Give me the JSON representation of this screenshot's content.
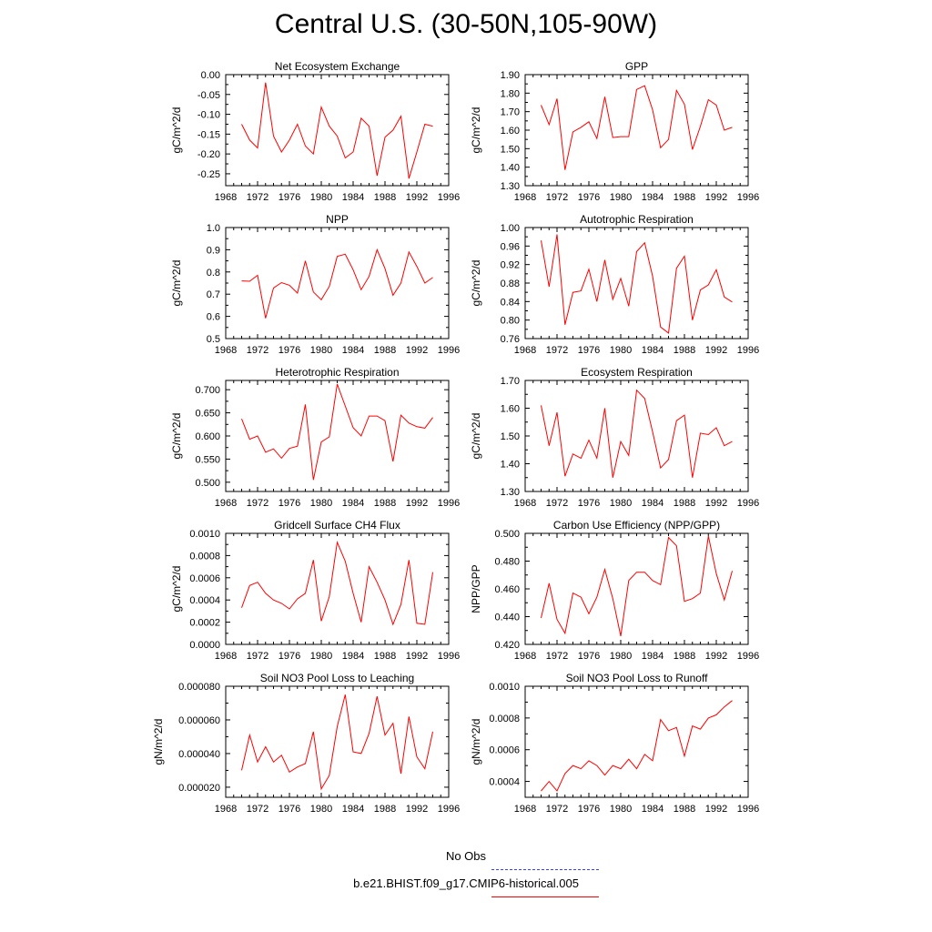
{
  "page": {
    "title": "Central U.S. (30-50N,105-90W)"
  },
  "legend": {
    "items": [
      {
        "label": "No Obs",
        "color": "#3a3aff",
        "style": "dashed"
      },
      {
        "label": "b.e21.BHIST.f09_g17.CMIP6-historical.005",
        "color": "#ff0000",
        "style": "solid"
      }
    ]
  },
  "chart_data": [
    {
      "type": "line",
      "title": "Net Ecosystem Exchange",
      "ylabel": "gC/m^2/d",
      "xlim": [
        1968,
        1996
      ],
      "xticks": [
        1968,
        1972,
        1976,
        1980,
        1984,
        1988,
        1992,
        1996
      ],
      "xtick_labels": [
        "1968",
        "1972",
        "1976",
        "1980",
        "1984",
        "1988",
        "1992",
        "1996"
      ],
      "ylim": [
        -0.28,
        0.0
      ],
      "yticks": [
        0.0,
        -0.05,
        -0.1,
        -0.15,
        -0.2,
        -0.25
      ],
      "ytick_labels": [
        "0.00",
        "-0.05",
        "-0.10",
        "-0.15",
        "-0.20",
        "-0.25"
      ],
      "color": "#ff0000",
      "x": [
        1970,
        1971,
        1972,
        1973,
        1974,
        1975,
        1976,
        1977,
        1978,
        1979,
        1980,
        1981,
        1982,
        1983,
        1984,
        1985,
        1986,
        1987,
        1988,
        1989,
        1990,
        1991,
        1992,
        1993,
        1994
      ],
      "y": [
        -0.125,
        -0.165,
        -0.185,
        -0.02,
        -0.155,
        -0.195,
        -0.165,
        -0.125,
        -0.18,
        -0.2,
        -0.082,
        -0.13,
        -0.155,
        -0.21,
        -0.195,
        -0.11,
        -0.13,
        -0.255,
        -0.158,
        -0.14,
        -0.105,
        -0.262,
        -0.195,
        -0.125,
        -0.13
      ]
    },
    {
      "type": "line",
      "title": "GPP",
      "ylabel": "gC/m^2/d",
      "xlim": [
        1968,
        1996
      ],
      "xticks": [
        1968,
        1972,
        1976,
        1980,
        1984,
        1988,
        1992,
        1996
      ],
      "xtick_labels": [
        "1968",
        "1972",
        "1976",
        "1980",
        "1984",
        "1988",
        "1992",
        "1996"
      ],
      "ylim": [
        1.3,
        1.9
      ],
      "yticks": [
        1.3,
        1.4,
        1.5,
        1.6,
        1.7,
        1.8,
        1.9
      ],
      "ytick_labels": [
        "1.30",
        "1.40",
        "1.50",
        "1.60",
        "1.70",
        "1.80",
        "1.90"
      ],
      "color": "#ff0000",
      "x": [
        1970,
        1971,
        1972,
        1973,
        1974,
        1975,
        1976,
        1977,
        1978,
        1979,
        1980,
        1981,
        1982,
        1983,
        1984,
        1985,
        1986,
        1987,
        1988,
        1989,
        1990,
        1991,
        1992,
        1993,
        1994
      ],
      "y": [
        1.735,
        1.63,
        1.77,
        1.385,
        1.59,
        1.615,
        1.645,
        1.555,
        1.78,
        1.56,
        1.565,
        1.565,
        1.82,
        1.84,
        1.71,
        1.505,
        1.55,
        1.815,
        1.74,
        1.495,
        1.62,
        1.765,
        1.735,
        1.6,
        1.615
      ]
    },
    {
      "type": "line",
      "title": "NPP",
      "ylabel": "gC/m^2/d",
      "xlim": [
        1968,
        1996
      ],
      "xticks": [
        1968,
        1972,
        1976,
        1980,
        1984,
        1988,
        1992,
        1996
      ],
      "xtick_labels": [
        "1968",
        "1972",
        "1976",
        "1980",
        "1984",
        "1988",
        "1992",
        "1996"
      ],
      "ylim": [
        0.5,
        1.0
      ],
      "yticks": [
        0.5,
        0.6,
        0.7,
        0.8,
        0.9,
        1.0
      ],
      "ytick_labels": [
        "0.5",
        "0.6",
        "0.7",
        "0.8",
        "0.9",
        "1.0"
      ],
      "color": "#ff0000",
      "x": [
        1970,
        1971,
        1972,
        1973,
        1974,
        1975,
        1976,
        1977,
        1978,
        1979,
        1980,
        1981,
        1982,
        1983,
        1984,
        1985,
        1986,
        1987,
        1988,
        1989,
        1990,
        1991,
        1992,
        1993,
        1994
      ],
      "y": [
        0.76,
        0.758,
        0.785,
        0.592,
        0.728,
        0.752,
        0.74,
        0.705,
        0.85,
        0.71,
        0.675,
        0.735,
        0.87,
        0.88,
        0.81,
        0.72,
        0.78,
        0.9,
        0.815,
        0.695,
        0.75,
        0.89,
        0.825,
        0.75,
        0.775
      ]
    },
    {
      "type": "line",
      "title": "Autotrophic Respiration",
      "ylabel": "gC/m^2/d",
      "xlim": [
        1968,
        1996
      ],
      "xticks": [
        1968,
        1972,
        1976,
        1980,
        1984,
        1988,
        1992,
        1996
      ],
      "xtick_labels": [
        "1968",
        "1972",
        "1976",
        "1980",
        "1984",
        "1988",
        "1992",
        "1996"
      ],
      "ylim": [
        0.76,
        1.0
      ],
      "yticks": [
        0.76,
        0.8,
        0.84,
        0.88,
        0.92,
        0.96,
        1.0
      ],
      "ytick_labels": [
        "0.76",
        "0.80",
        "0.84",
        "0.88",
        "0.92",
        "0.96",
        "1.00"
      ],
      "color": "#ff0000",
      "x": [
        1970,
        1971,
        1972,
        1973,
        1974,
        1975,
        1976,
        1977,
        1978,
        1979,
        1980,
        1981,
        1982,
        1983,
        1984,
        1985,
        1986,
        1987,
        1988,
        1989,
        1990,
        1991,
        1992,
        1993,
        1994
      ],
      "y": [
        0.972,
        0.872,
        0.985,
        0.79,
        0.86,
        0.863,
        0.91,
        0.84,
        0.93,
        0.845,
        0.89,
        0.83,
        0.948,
        0.967,
        0.895,
        0.785,
        0.772,
        0.912,
        0.938,
        0.8,
        0.865,
        0.876,
        0.909,
        0.85,
        0.839
      ]
    },
    {
      "type": "line",
      "title": "Heterotrophic Respiration",
      "ylabel": "gC/m^2/d",
      "xlim": [
        1968,
        1996
      ],
      "xticks": [
        1968,
        1972,
        1976,
        1980,
        1984,
        1988,
        1992,
        1996
      ],
      "xtick_labels": [
        "1968",
        "1972",
        "1976",
        "1980",
        "1984",
        "1988",
        "1992",
        "1996"
      ],
      "ylim": [
        0.48,
        0.72
      ],
      "yticks": [
        0.5,
        0.55,
        0.6,
        0.65,
        0.7
      ],
      "ytick_labels": [
        "0.500",
        "0.550",
        "0.600",
        "0.650",
        "0.700"
      ],
      "color": "#ff0000",
      "x": [
        1970,
        1971,
        1972,
        1973,
        1974,
        1975,
        1976,
        1977,
        1978,
        1979,
        1980,
        1981,
        1982,
        1983,
        1984,
        1985,
        1986,
        1987,
        1988,
        1989,
        1990,
        1991,
        1992,
        1993,
        1994
      ],
      "y": [
        0.637,
        0.593,
        0.6,
        0.565,
        0.572,
        0.552,
        0.573,
        0.578,
        0.668,
        0.505,
        0.587,
        0.598,
        0.712,
        0.665,
        0.618,
        0.6,
        0.643,
        0.643,
        0.633,
        0.545,
        0.645,
        0.628,
        0.62,
        0.617,
        0.64
      ]
    },
    {
      "type": "line",
      "title": "Ecosystem Respiration",
      "ylabel": "gC/m^2/d",
      "xlim": [
        1968,
        1996
      ],
      "xticks": [
        1968,
        1972,
        1976,
        1980,
        1984,
        1988,
        1992,
        1996
      ],
      "xtick_labels": [
        "1968",
        "1972",
        "1976",
        "1980",
        "1984",
        "1988",
        "1992",
        "1996"
      ],
      "ylim": [
        1.3,
        1.7
      ],
      "yticks": [
        1.3,
        1.4,
        1.5,
        1.6,
        1.7
      ],
      "ytick_labels": [
        "1.30",
        "1.40",
        "1.50",
        "1.60",
        "1.70"
      ],
      "color": "#ff0000",
      "x": [
        1970,
        1971,
        1972,
        1973,
        1974,
        1975,
        1976,
        1977,
        1978,
        1979,
        1980,
        1981,
        1982,
        1983,
        1984,
        1985,
        1986,
        1987,
        1988,
        1989,
        1990,
        1991,
        1992,
        1993,
        1994
      ],
      "y": [
        1.61,
        1.465,
        1.585,
        1.355,
        1.435,
        1.42,
        1.485,
        1.42,
        1.6,
        1.35,
        1.48,
        1.43,
        1.665,
        1.635,
        1.515,
        1.385,
        1.415,
        1.555,
        1.575,
        1.35,
        1.51,
        1.505,
        1.53,
        1.465,
        1.48
      ]
    },
    {
      "type": "line",
      "title": "Gridcell Surface CH4 Flux",
      "ylabel": "gC/m^2/d",
      "xlim": [
        1968,
        1996
      ],
      "xticks": [
        1968,
        1972,
        1976,
        1980,
        1984,
        1988,
        1992,
        1996
      ],
      "xtick_labels": [
        "1968",
        "1972",
        "1976",
        "1980",
        "1984",
        "1988",
        "1992",
        "1996"
      ],
      "ylim": [
        0.0,
        0.001
      ],
      "yticks": [
        0.0,
        0.0002,
        0.0004,
        0.0006,
        0.0008,
        0.001
      ],
      "ytick_labels": [
        "0.0000",
        "0.0002",
        "0.0004",
        "0.0006",
        "0.0008",
        "0.0010"
      ],
      "color": "#ff0000",
      "x": [
        1970,
        1971,
        1972,
        1973,
        1974,
        1975,
        1976,
        1977,
        1978,
        1979,
        1980,
        1981,
        1982,
        1983,
        1984,
        1985,
        1986,
        1987,
        1988,
        1989,
        1990,
        1991,
        1992,
        1993,
        1994
      ],
      "y": [
        0.00033,
        0.00053,
        0.00056,
        0.00046,
        0.0004,
        0.00037,
        0.00032,
        0.00041,
        0.00046,
        0.00076,
        0.00021,
        0.00043,
        0.00092,
        0.00075,
        0.00046,
        0.0002,
        0.0007,
        0.00056,
        0.0004,
        0.00018,
        0.00036,
        0.00076,
        0.00019,
        0.00018,
        0.00065
      ]
    },
    {
      "type": "line",
      "title": "Carbon Use Efficiency (NPP/GPP)",
      "ylabel": "NPP/GPP",
      "xlim": [
        1968,
        1996
      ],
      "xticks": [
        1968,
        1972,
        1976,
        1980,
        1984,
        1988,
        1992,
        1996
      ],
      "xtick_labels": [
        "1968",
        "1972",
        "1976",
        "1980",
        "1984",
        "1988",
        "1992",
        "1996"
      ],
      "ylim": [
        0.42,
        0.5
      ],
      "yticks": [
        0.42,
        0.44,
        0.46,
        0.48,
        0.5
      ],
      "ytick_labels": [
        "0.420",
        "0.440",
        "0.460",
        "0.480",
        "0.500"
      ],
      "color": "#ff0000",
      "x": [
        1970,
        1971,
        1972,
        1973,
        1974,
        1975,
        1976,
        1977,
        1978,
        1979,
        1980,
        1981,
        1982,
        1983,
        1984,
        1985,
        1986,
        1987,
        1988,
        1989,
        1990,
        1991,
        1992,
        1993,
        1994
      ],
      "y": [
        0.439,
        0.464,
        0.438,
        0.428,
        0.457,
        0.454,
        0.442,
        0.454,
        0.474,
        0.453,
        0.426,
        0.466,
        0.472,
        0.472,
        0.466,
        0.463,
        0.497,
        0.491,
        0.451,
        0.453,
        0.457,
        0.498,
        0.471,
        0.452,
        0.473
      ]
    },
    {
      "type": "line",
      "title": "Soil NO3 Pool Loss to Leaching",
      "ylabel": "gN/m^2/d",
      "xlim": [
        1968,
        1996
      ],
      "xticks": [
        1968,
        1972,
        1976,
        1980,
        1984,
        1988,
        1992,
        1996
      ],
      "xtick_labels": [
        "1968",
        "1972",
        "1976",
        "1980",
        "1984",
        "1988",
        "1992",
        "1996"
      ],
      "ylim": [
        1.4e-05,
        8e-05
      ],
      "yticks": [
        2e-05,
        4e-05,
        6e-05,
        8e-05
      ],
      "ytick_labels": [
        "0.000020",
        "0.000040",
        "0.000060",
        "0.000080"
      ],
      "color": "#ff0000",
      "x": [
        1970,
        1971,
        1972,
        1973,
        1974,
        1975,
        1976,
        1977,
        1978,
        1979,
        1980,
        1981,
        1982,
        1983,
        1984,
        1985,
        1986,
        1987,
        1988,
        1989,
        1990,
        1991,
        1992,
        1993,
        1994
      ],
      "y": [
        3e-05,
        5.1e-05,
        3.5e-05,
        4.4e-05,
        3.5e-05,
        3.9e-05,
        2.9e-05,
        3.2e-05,
        3.4e-05,
        5.3e-05,
        1.9e-05,
        2.7e-05,
        5.6e-05,
        7.5e-05,
        4.1e-05,
        4e-05,
        5.2e-05,
        7.4e-05,
        5.1e-05,
        5.8e-05,
        2.8e-05,
        6.2e-05,
        3.8e-05,
        3.1e-05,
        5.3e-05
      ]
    },
    {
      "type": "line",
      "title": "Soil NO3 Pool Loss to Runoff",
      "ylabel": "gN/m^2/d",
      "xlim": [
        1968,
        1996
      ],
      "xticks": [
        1968,
        1972,
        1976,
        1980,
        1984,
        1988,
        1992,
        1996
      ],
      "xtick_labels": [
        "1968",
        "1972",
        "1976",
        "1980",
        "1984",
        "1988",
        "1992",
        "1996"
      ],
      "ylim": [
        0.0003,
        0.001
      ],
      "yticks": [
        0.0004,
        0.0006,
        0.0008,
        0.001
      ],
      "ytick_labels": [
        "0.0004",
        "0.0006",
        "0.0008",
        "0.0010"
      ],
      "color": "#ff0000",
      "x": [
        1970,
        1971,
        1972,
        1973,
        1974,
        1975,
        1976,
        1977,
        1978,
        1979,
        1980,
        1981,
        1982,
        1983,
        1984,
        1985,
        1986,
        1987,
        1988,
        1989,
        1990,
        1991,
        1992,
        1993,
        1994
      ],
      "y": [
        0.00034,
        0.0004,
        0.00034,
        0.00045,
        0.0005,
        0.00048,
        0.00053,
        0.0005,
        0.00044,
        0.0005,
        0.00048,
        0.00054,
        0.00048,
        0.00057,
        0.00053,
        0.00079,
        0.00072,
        0.00074,
        0.00056,
        0.00075,
        0.00073,
        0.0008,
        0.00082,
        0.00087,
        0.00091
      ]
    }
  ]
}
